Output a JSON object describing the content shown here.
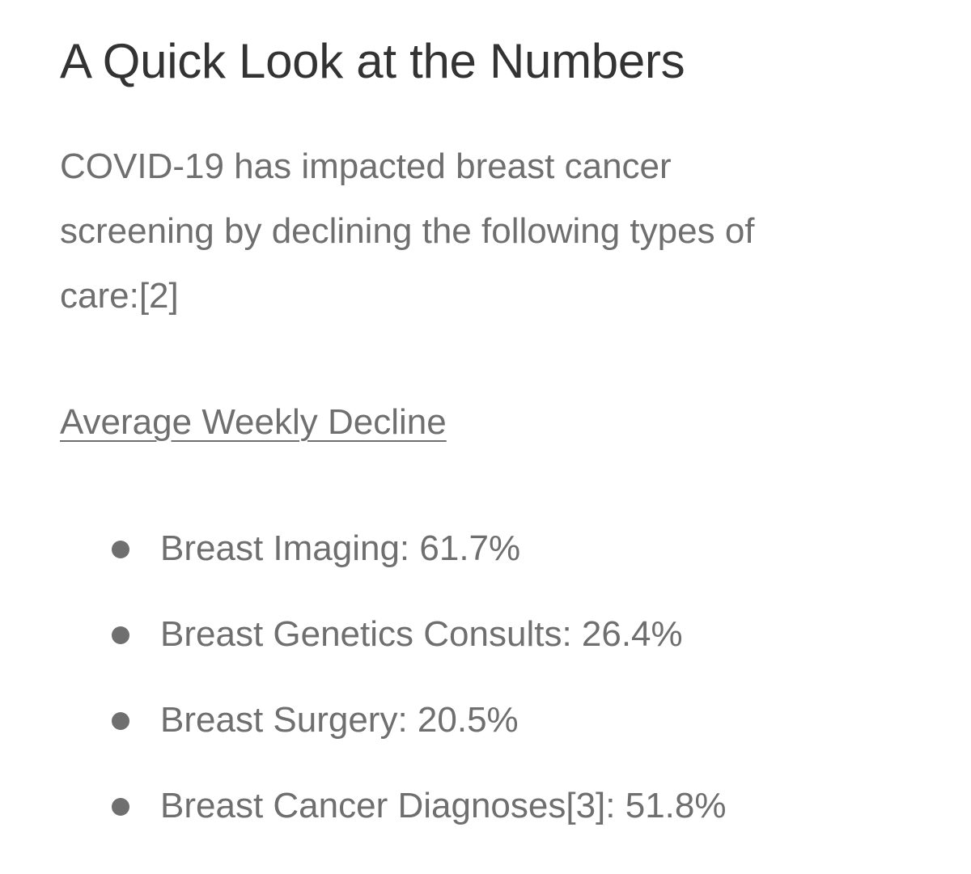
{
  "heading": "A Quick Look at the Numbers",
  "intro": {
    "lines": [
      "COVID-19 has impacted breast cancer",
      "screening by declining the following types of",
      "care:[2]"
    ]
  },
  "subheading": "Average Weekly Decline",
  "stats": [
    {
      "label": "Breast Imaging: 61.7%"
    },
    {
      "label": "Breast Genetics Consults: 26.4%"
    },
    {
      "label": "Breast Surgery: 20.5%"
    },
    {
      "label": "Breast Cancer Diagnoses[3]: 51.8%"
    }
  ]
}
